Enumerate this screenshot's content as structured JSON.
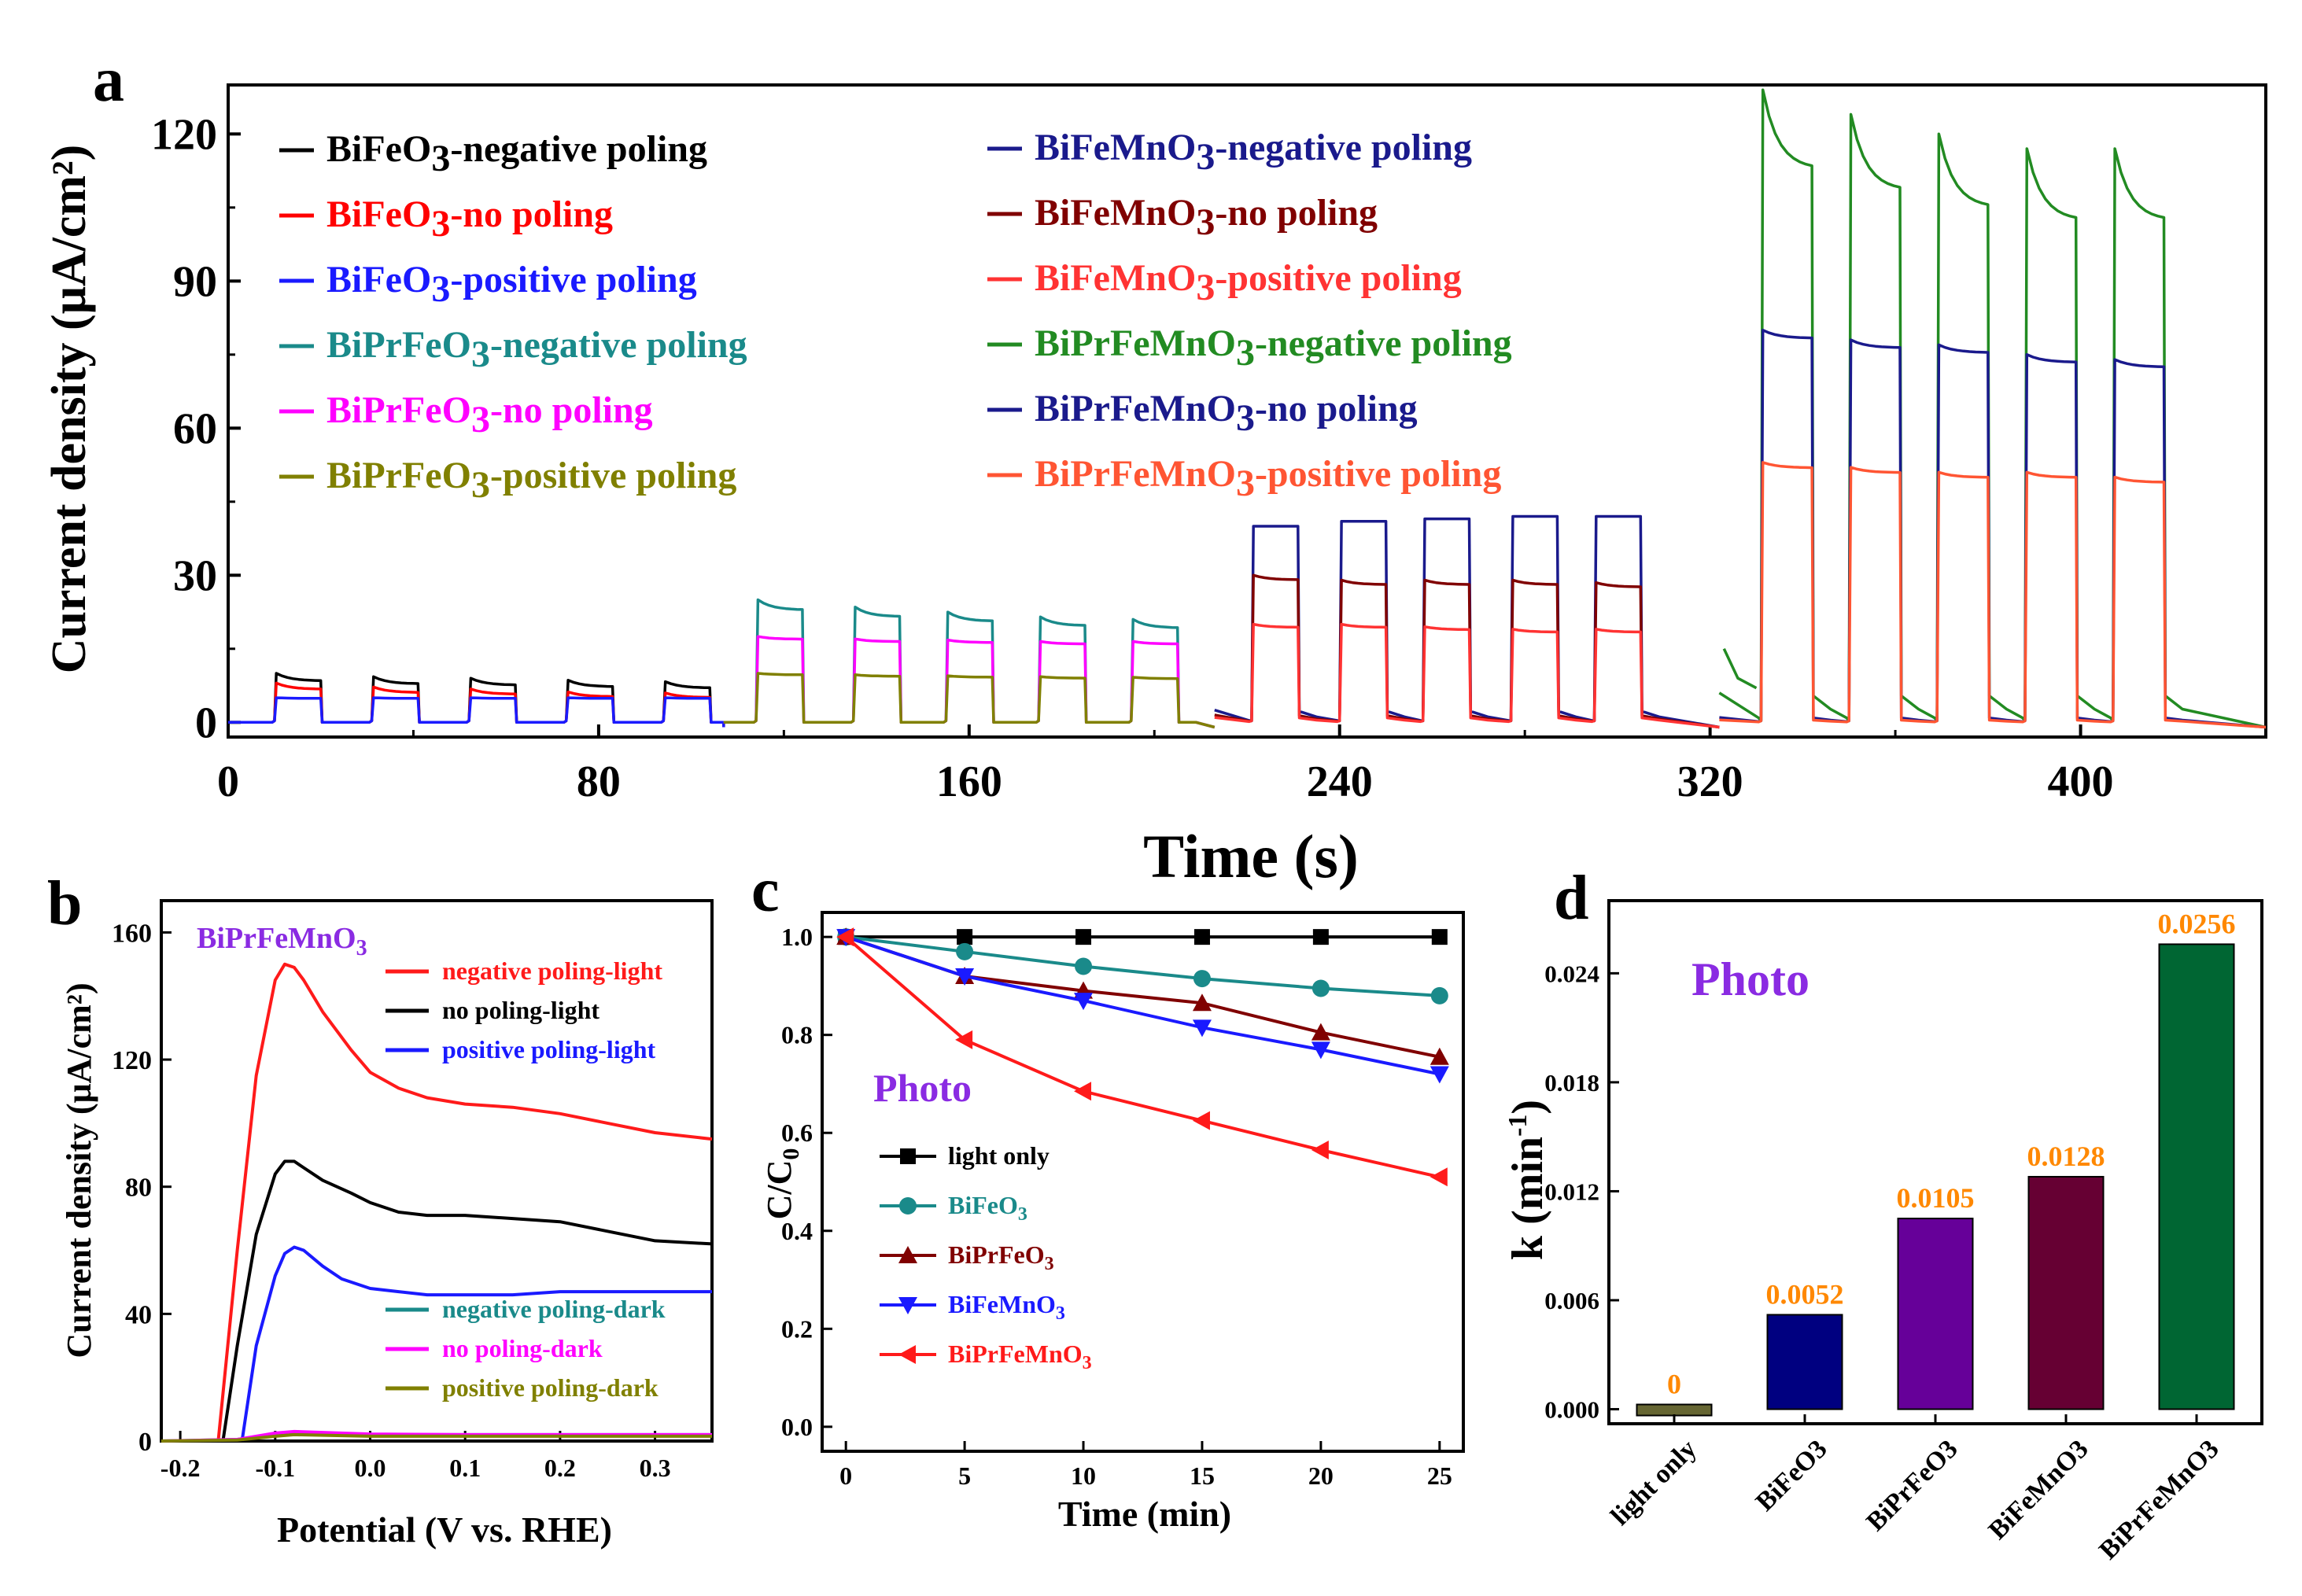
{
  "chart_data": [
    {
      "panel": "a",
      "type": "line",
      "xlabel": "Time (s)",
      "ylabel": "Current density (μA/cm²)",
      "xlim": [
        0,
        440
      ],
      "ylim": [
        -3,
        130
      ],
      "xticks": [
        0,
        80,
        160,
        240,
        320,
        400
      ],
      "yticks": [
        0,
        30,
        60,
        90,
        120
      ],
      "legend_left": [
        {
          "name": "BiFeO3-negative poling",
          "sub_base": "BiFeO",
          "sub": "3",
          "suffix": "-negative poling",
          "color": "#000000"
        },
        {
          "name": "BiFeO3-no poling",
          "sub_base": "BiFeO",
          "sub": "3",
          "suffix": "-no poling",
          "color": "#ff0000"
        },
        {
          "name": "BiFeO3-positive poling",
          "sub_base": "BiFeO",
          "sub": "3",
          "suffix": "-positive poling",
          "color": "#1a1aff"
        },
        {
          "name": "BiPrFeO3-negative poling",
          "sub_base": "BiPrFeO",
          "sub": "3",
          "suffix": "-negative poling",
          "color": "#1a8a8a"
        },
        {
          "name": "BiPrFeO3-no poling",
          "sub_base": "BiPrFeO",
          "sub": "3",
          "suffix": "-no poling",
          "color": "#ff00ff"
        },
        {
          "name": "BiPrFeO3-positive poling",
          "sub_base": "BiPrFeO",
          "sub": "3",
          "suffix": "-positive poling",
          "color": "#808000"
        }
      ],
      "legend_right": [
        {
          "name": "BiFeMnO3-negative poling",
          "sub_base": "BiFeMnO",
          "sub": "3",
          "suffix": "-negative poling",
          "color": "#1a1a8c"
        },
        {
          "name": "BiFeMnO3-no poling",
          "sub_base": "BiFeMnO",
          "sub": "3",
          "suffix": "-no poling",
          "color": "#800000"
        },
        {
          "name": "BiFeMnO3-positive poling",
          "sub_base": "BiFeMnO",
          "sub": "3",
          "suffix": "-positive poling",
          "color": "#ff3333"
        },
        {
          "name": "BiPrFeMnO3-negative poling",
          "sub_base": "BiPrFeMnO",
          "sub": "3",
          "suffix": "-negative poling",
          "color": "#228b22"
        },
        {
          "name": "BiPrFeMnO3-no poling",
          "sub_base": "BiPrFeMnO",
          "sub": "3",
          "suffix": "-no poling",
          "color": "#1a1a8c"
        },
        {
          "name": "BiPrFeMnO3-positive poling",
          "sub_base": "BiPrFeMnO",
          "sub": "3",
          "suffix": "-positive poling",
          "color": "#ff5533"
        }
      ],
      "segments": [
        {
          "t0": 0,
          "t1": 107,
          "ons": [
            10,
            31,
            52,
            73,
            94
          ],
          "width": 10,
          "traces": [
            {
              "color": "#000000",
              "peaks": [
                10,
                9.3,
                9,
                8.6,
                8.3
              ],
              "settle": 0.85
            },
            {
              "color": "#ff0000",
              "peaks": [
                8,
                7.2,
                6.8,
                6.2,
                6
              ],
              "settle": 0.85
            },
            {
              "color": "#1a1aff",
              "peaks": [
                5,
                5,
                5,
                5,
                5
              ],
              "settle": 0.98
            }
          ]
        },
        {
          "t0": 107,
          "t1": 213,
          "ons": [
            114,
            135,
            155,
            175,
            195
          ],
          "width": 10,
          "traces": [
            {
              "color": "#1a8a8a",
              "peaks": [
                25,
                23.5,
                22.5,
                21.5,
                21
              ],
              "settle": 0.92
            },
            {
              "color": "#ff00ff",
              "peaks": [
                17.5,
                17,
                16.8,
                16.5,
                16.5
              ],
              "settle": 0.97
            },
            {
              "color": "#808000",
              "peaks": [
                10,
                9.7,
                9.5,
                9.3,
                9.2
              ],
              "settle": 0.97
            }
          ]
        },
        {
          "t0": 213,
          "t1": 322,
          "ons": [
            221,
            240,
            258,
            277,
            295
          ],
          "width": 10,
          "traces": [
            {
              "color": "#1a1a8c",
              "peaks": [
                40,
                41,
                41.5,
                42,
                42
              ],
              "settle": 1.0,
              "drift": 2.5
            },
            {
              "color": "#800000",
              "peaks": [
                30,
                29,
                29,
                29,
                28.5
              ],
              "settle": 0.97,
              "drift": 1.5
            },
            {
              "color": "#ff3333",
              "peaks": [
                20,
                20,
                19.5,
                19,
                19
              ],
              "settle": 0.97,
              "drift": 1.0
            }
          ]
        },
        {
          "t0": 322,
          "t1": 440,
          "ons": [
            331,
            350,
            369,
            388,
            407
          ],
          "width": 11,
          "traces": [
            {
              "color": "#228b22",
              "peaks": [
                129,
                124,
                120,
                117,
                117
              ],
              "settle": 0.88,
              "drift": 6
            },
            {
              "color": "#1a1a8c",
              "peaks": [
                80,
                78,
                77,
                75,
                74
              ],
              "settle": 0.98,
              "drift": 1
            },
            {
              "color": "#ff5533",
              "peaks": [
                53,
                52,
                51,
                51,
                50
              ],
              "settle": 0.98,
              "drift": 0.5
            }
          ]
        }
      ]
    },
    {
      "panel": "b",
      "type": "line",
      "title": "BiPrFeMnO3",
      "title_base": "BiPrFeMnO",
      "title_sub": "3",
      "xlabel": "Potential (V vs. RHE)",
      "ylabel": "Current density (μA/cm²)",
      "xlim": [
        -0.22,
        0.36
      ],
      "ylim": [
        0,
        170
      ],
      "xticks": [
        -0.2,
        -0.1,
        0.0,
        0.1,
        0.2,
        0.3
      ],
      "xtick_labels": [
        "-0.2",
        "-0.1",
        "0.0",
        "0.1",
        "0.2",
        "0.3"
      ],
      "yticks": [
        0,
        40,
        80,
        120,
        160
      ],
      "series": [
        {
          "name": "negative poling-light",
          "color": "#ff1a1a",
          "x": [
            -0.16,
            -0.14,
            -0.12,
            -0.1,
            -0.09,
            -0.08,
            -0.07,
            -0.05,
            -0.02,
            0.0,
            0.03,
            0.06,
            0.1,
            0.15,
            0.2,
            0.25,
            0.3,
            0.36
          ],
          "y": [
            0,
            60,
            115,
            145,
            150,
            149,
            145,
            135,
            123,
            116,
            111,
            108,
            106,
            105,
            103,
            100,
            97,
            95
          ]
        },
        {
          "name": "no poling-light",
          "color": "#000000",
          "x": [
            -0.155,
            -0.14,
            -0.12,
            -0.1,
            -0.09,
            -0.08,
            -0.07,
            -0.05,
            -0.02,
            0.0,
            0.03,
            0.06,
            0.1,
            0.15,
            0.2,
            0.25,
            0.3,
            0.36
          ],
          "y": [
            0,
            30,
            65,
            84,
            88,
            88,
            86,
            82,
            78,
            75,
            72,
            71,
            71,
            70,
            69,
            66,
            63,
            62
          ]
        },
        {
          "name": "positive poling-light",
          "color": "#1a1aff",
          "x": [
            -0.135,
            -0.12,
            -0.1,
            -0.09,
            -0.08,
            -0.07,
            -0.05,
            -0.03,
            0.0,
            0.03,
            0.06,
            0.1,
            0.15,
            0.2,
            0.25,
            0.3,
            0.36
          ],
          "y": [
            0,
            30,
            52,
            59,
            61,
            60,
            55,
            51,
            48,
            47,
            46,
            46,
            46,
            47,
            47,
            47,
            47
          ]
        },
        {
          "name": "negative poling-dark",
          "color": "#1a8a8a",
          "x": [
            -0.22,
            -0.14,
            -0.1,
            -0.08,
            0.0,
            0.1,
            0.2,
            0.36
          ],
          "y": [
            0,
            0.5,
            2,
            2.5,
            2,
            2,
            2,
            2
          ]
        },
        {
          "name": "no poling-dark",
          "color": "#ff00ff",
          "x": [
            -0.22,
            -0.14,
            -0.1,
            -0.08,
            0.0,
            0.1,
            0.2,
            0.36
          ],
          "y": [
            0,
            0.5,
            2.5,
            3,
            2.2,
            2,
            2,
            2
          ]
        },
        {
          "name": "positive poling-dark",
          "color": "#808000",
          "x": [
            -0.22,
            -0.14,
            -0.1,
            -0.08,
            0.0,
            0.1,
            0.2,
            0.36
          ],
          "y": [
            0,
            0.3,
            1.5,
            2,
            1.5,
            1.5,
            1.5,
            1.5
          ]
        }
      ]
    },
    {
      "panel": "c",
      "type": "line",
      "title": "Photo",
      "xlabel": "Time (min)",
      "ylabel": "C/C0",
      "ylabel_base": "C/C",
      "ylabel_sub": "0",
      "xlim": [
        -1,
        26
      ],
      "ylim": [
        -0.05,
        1.05
      ],
      "xticks": [
        0,
        5,
        10,
        15,
        20,
        25
      ],
      "yticks": [
        0.0,
        0.2,
        0.4,
        0.6,
        0.8,
        1.0
      ],
      "ytick_labels": [
        "0.0",
        "0.2",
        "0.4",
        "0.6",
        "0.8",
        "1.0"
      ],
      "x": [
        0,
        5,
        10,
        15,
        20,
        25
      ],
      "series": [
        {
          "name": "light only",
          "label_base": "light only",
          "label_sub": "",
          "color": "#000000",
          "marker": "square",
          "values": [
            1.0,
            1.0,
            1.0,
            1.0,
            1.0,
            1.0
          ]
        },
        {
          "name": "BiFeO3",
          "label_base": "BiFeO",
          "label_sub": "3",
          "color": "#1a8a8a",
          "marker": "circle",
          "values": [
            1.0,
            0.97,
            0.94,
            0.915,
            0.895,
            0.88
          ]
        },
        {
          "name": "BiPrFeO3",
          "label_base": "BiPrFeO",
          "label_sub": "3",
          "color": "#800000",
          "marker": "triangle-up",
          "values": [
            1.0,
            0.92,
            0.89,
            0.865,
            0.805,
            0.755
          ]
        },
        {
          "name": "BiFeMnO3",
          "label_base": "BiFeMnO",
          "label_sub": "3",
          "color": "#1a1aff",
          "marker": "triangle-down",
          "values": [
            1.0,
            0.92,
            0.87,
            0.815,
            0.77,
            0.72
          ]
        },
        {
          "name": "BiPrFeMnO3",
          "label_base": "BiPrFeMnO",
          "label_sub": "3",
          "color": "#ff1a1a",
          "marker": "triangle-left",
          "values": [
            1.0,
            0.79,
            0.685,
            0.625,
            0.565,
            0.51
          ]
        }
      ]
    },
    {
      "panel": "d",
      "type": "bar",
      "title": "Photo",
      "ylabel": "k (min-1)",
      "ylabel_base": "k (min",
      "ylabel_sup": "-1",
      "ylabel_close": ")",
      "ylim": [
        -0.0008,
        0.028
      ],
      "yticks": [
        0.0,
        0.006,
        0.012,
        0.018,
        0.024
      ],
      "ytick_labels": [
        "0.000",
        "0.006",
        "0.012",
        "0.018",
        "0.024"
      ],
      "categories": [
        "light only",
        "BiFeO3",
        "BiPrFeO3",
        "BiFeMnO3",
        "BiPrFeMnO3"
      ],
      "values": [
        0,
        0.0052,
        0.0105,
        0.0128,
        0.0256
      ],
      "value_labels": [
        "0",
        "0.0052",
        "0.0105",
        "0.0128",
        "0.0256"
      ],
      "colors": [
        "#666633",
        "#000080",
        "#660099",
        "#660033",
        "#006633"
      ],
      "label_color": "#ff8800"
    }
  ],
  "panel_labels": {
    "a": "a",
    "b": "b",
    "c": "c",
    "d": "d"
  }
}
